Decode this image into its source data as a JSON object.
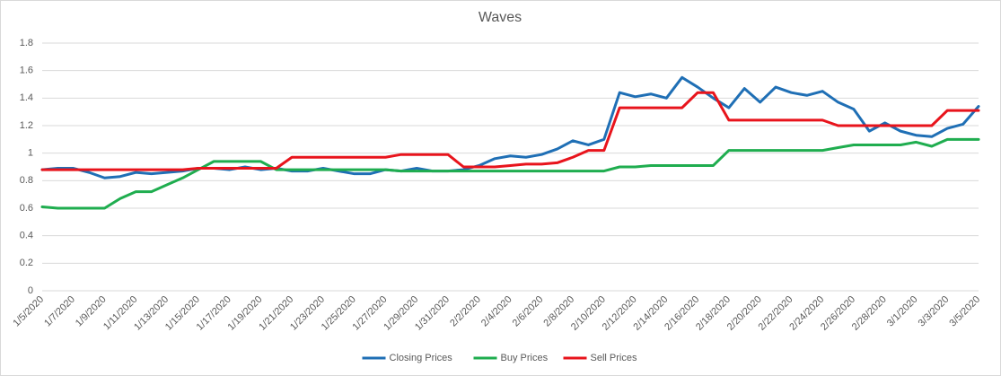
{
  "chart_data": {
    "type": "line",
    "title": "Waves",
    "categories": [
      "1/5/2020",
      null,
      "1/7/2020",
      null,
      "1/9/2020",
      null,
      "1/11/2020",
      null,
      "1/13/2020",
      null,
      "1/15/2020",
      null,
      "1/17/2020",
      null,
      "1/19/2020",
      null,
      "1/21/2020",
      null,
      "1/23/2020",
      null,
      "1/25/2020",
      null,
      "1/27/2020",
      null,
      "1/29/2020",
      null,
      "1/31/2020",
      null,
      "2/2/2020",
      null,
      "2/4/2020",
      null,
      "2/6/2020",
      null,
      "2/8/2020",
      null,
      "2/10/2020",
      null,
      "2/12/2020",
      null,
      "2/14/2020",
      null,
      "2/16/2020",
      null,
      "2/18/2020",
      null,
      "2/20/2020",
      null,
      "2/22/2020",
      null,
      "2/24/2020",
      null,
      "2/26/2020",
      null,
      "2/28/2020",
      null,
      "3/1/2020",
      null,
      "3/3/2020",
      null,
      "3/5/2020"
    ],
    "series": [
      {
        "name": "Closing Prices",
        "color": "#1f6fb5",
        "values": [
          0.88,
          0.89,
          0.89,
          0.86,
          0.82,
          0.83,
          0.86,
          0.85,
          0.86,
          0.87,
          0.89,
          0.89,
          0.88,
          0.9,
          0.88,
          0.89,
          0.87,
          0.87,
          0.89,
          0.87,
          0.85,
          0.85,
          0.88,
          0.87,
          0.89,
          0.87,
          0.87,
          0.88,
          0.91,
          0.96,
          0.98,
          0.97,
          0.99,
          1.03,
          1.09,
          1.06,
          1.1,
          1.44,
          1.41,
          1.43,
          1.4,
          1.55,
          1.48,
          1.4,
          1.33,
          1.47,
          1.37,
          1.48,
          1.44,
          1.42,
          1.45,
          1.37,
          1.32,
          1.16,
          1.22,
          1.16,
          1.13,
          1.12,
          1.18,
          1.21,
          1.34
        ]
      },
      {
        "name": "Buy Prices",
        "color": "#1fad4f",
        "values": [
          0.61,
          0.6,
          0.6,
          0.6,
          0.6,
          0.67,
          0.72,
          0.72,
          0.77,
          0.82,
          0.88,
          0.94,
          0.94,
          0.94,
          0.94,
          0.88,
          0.88,
          0.88,
          0.88,
          0.88,
          0.88,
          0.88,
          0.88,
          0.87,
          0.87,
          0.87,
          0.87,
          0.87,
          0.87,
          0.87,
          0.87,
          0.87,
          0.87,
          0.87,
          0.87,
          0.87,
          0.87,
          0.9,
          0.9,
          0.91,
          0.91,
          0.91,
          0.91,
          0.91,
          1.02,
          1.02,
          1.02,
          1.02,
          1.02,
          1.02,
          1.02,
          1.04,
          1.06,
          1.06,
          1.06,
          1.06,
          1.08,
          1.05,
          1.1,
          1.1,
          1.1
        ]
      },
      {
        "name": "Sell Prices",
        "color": "#e8141c",
        "values": [
          0.88,
          0.88,
          0.88,
          0.88,
          0.88,
          0.88,
          0.88,
          0.88,
          0.88,
          0.88,
          0.89,
          0.89,
          0.89,
          0.89,
          0.89,
          0.89,
          0.97,
          0.97,
          0.97,
          0.97,
          0.97,
          0.97,
          0.97,
          0.99,
          0.99,
          0.99,
          0.99,
          0.9,
          0.9,
          0.9,
          0.91,
          0.92,
          0.92,
          0.93,
          0.97,
          1.02,
          1.02,
          1.33,
          1.33,
          1.33,
          1.33,
          1.33,
          1.44,
          1.44,
          1.24,
          1.24,
          1.24,
          1.24,
          1.24,
          1.24,
          1.24,
          1.2,
          1.2,
          1.2,
          1.2,
          1.2,
          1.2,
          1.2,
          1.31,
          1.31,
          1.31
        ]
      }
    ],
    "ylim": [
      0,
      1.8
    ],
    "yticks": [
      0,
      0.2,
      0.4,
      0.6,
      0.8,
      1,
      1.2,
      1.4,
      1.6,
      1.8
    ],
    "grid": true,
    "legend": "bottom"
  }
}
